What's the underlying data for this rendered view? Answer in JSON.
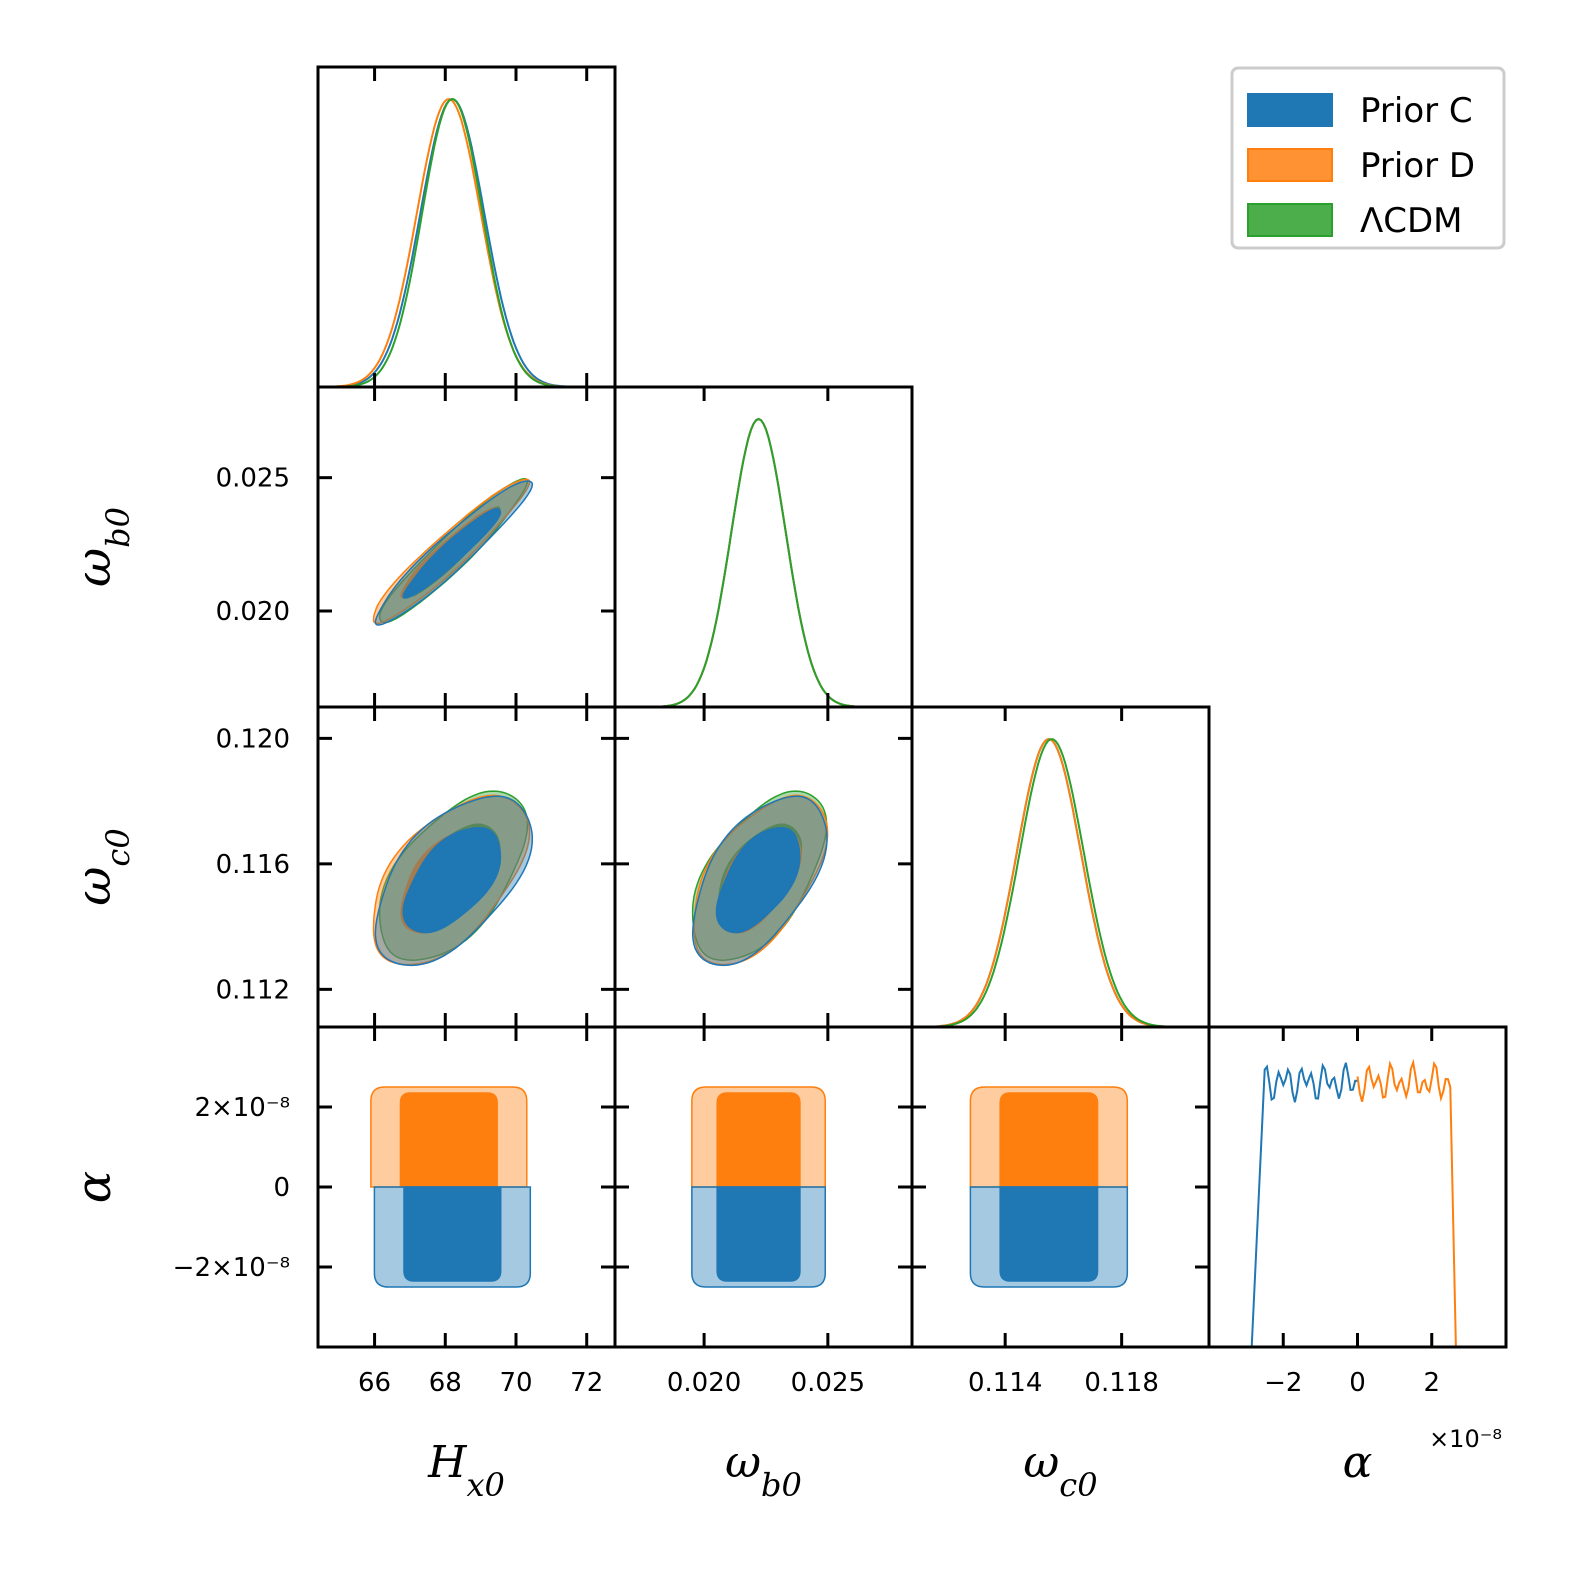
{
  "chart_data": {
    "type": "corner",
    "parameters": [
      {
        "id": "H",
        "label": "H",
        "sub": "x0",
        "range": [
          64.4,
          72.8
        ],
        "ticks": [
          66,
          68,
          70,
          72
        ],
        "tick_labels": [
          "66",
          "68",
          "70",
          "72"
        ]
      },
      {
        "id": "wb",
        "label": "ω",
        "sub": "b0",
        "range": [
          0.0164,
          0.0284
        ],
        "ticks": [
          0.02,
          0.025
        ],
        "tick_labels": [
          "0.020",
          "0.025"
        ]
      },
      {
        "id": "wc",
        "label": "ω",
        "sub": "c0",
        "range": [
          0.1108,
          0.121
        ],
        "ticks": [
          0.112,
          0.116,
          0.12
        ],
        "tick_labels": [
          "0.112",
          "0.116",
          "0.120"
        ],
        "x_ticks": [
          0.114,
          0.118
        ],
        "x_tick_labels": [
          "0.114",
          "0.118"
        ]
      },
      {
        "id": "alpha",
        "label": "α",
        "sub": "",
        "range": [
          -4e-08,
          4e-08
        ],
        "ticks": [
          -2e-08,
          0,
          2e-08
        ],
        "tick_labels": [
          "−2×10⁻⁸",
          "0",
          "2×10⁻⁸"
        ],
        "x_ticks": [
          -2,
          0,
          2
        ],
        "x_tick_labels": [
          "−2",
          "0",
          "2"
        ],
        "x_offset": "×10⁻⁸",
        "x_scale": 1e-08
      }
    ],
    "legend": {
      "placement": "top-right",
      "entries": [
        {
          "name": "Prior C",
          "color": "#1f77b4"
        },
        {
          "name": "Prior D",
          "color": "#ff7f0e"
        },
        {
          "name": "ΛCDM",
          "color": "#2ca02c"
        }
      ]
    },
    "series": [
      {
        "name": "Prior C",
        "color": "#1f77b4",
        "mean": {
          "H": 68.2,
          "wb": 0.0222,
          "wc": 0.1155
        },
        "sigma": {
          "H": 0.9,
          "wb": 0.0011,
          "wc": 0.0011
        },
        "alpha_range": [
          -2.5e-08,
          0
        ]
      },
      {
        "name": "Prior D",
        "color": "#ff7f0e",
        "mean": {
          "H": 68.1,
          "wb": 0.0222,
          "wc": 0.1155
        },
        "sigma": {
          "H": 0.9,
          "wb": 0.0011,
          "wc": 0.0011
        },
        "alpha_range": [
          0,
          2.5e-08
        ]
      },
      {
        "name": "ΛCDM",
        "color": "#2ca02c",
        "mean": {
          "H": 68.2,
          "wb": 0.0222,
          "wc": 0.1156
        },
        "sigma": {
          "H": 0.85,
          "wb": 0.0011,
          "wc": 0.0011
        }
      }
    ],
    "correlations": {
      "H-wb": 0.95,
      "H-wc": 0.55,
      "wb-wc": 0.55
    }
  }
}
